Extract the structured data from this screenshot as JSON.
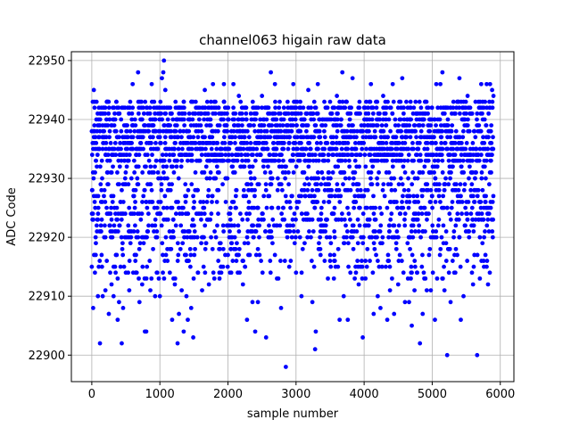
{
  "chart_data": {
    "type": "scatter",
    "title": "channel063 higain raw data",
    "xlabel": "sample number",
    "ylabel": "ADC Code",
    "xlim": [
      -300,
      6200
    ],
    "ylim": [
      22895.5,
      22951.5
    ],
    "xticks": [
      0,
      1000,
      2000,
      3000,
      4000,
      5000,
      6000
    ],
    "yticks": [
      22900,
      22910,
      22920,
      22930,
      22940,
      22950
    ],
    "grid": true,
    "marker_color": "#0000ff",
    "series": [
      {
        "points": [
          [
            0,
            22915
          ],
          [
            20,
            22908
          ],
          [
            30,
            22945
          ],
          [
            40,
            22943
          ],
          [
            60,
            22933
          ],
          [
            90,
            22910
          ],
          [
            120,
            22902
          ],
          [
            150,
            22915
          ],
          [
            160,
            22910
          ],
          [
            200,
            22911
          ],
          [
            220,
            22916
          ],
          [
            250,
            22907
          ],
          [
            290,
            22912
          ],
          [
            320,
            22910
          ],
          [
            380,
            22906
          ],
          [
            400,
            22909
          ],
          [
            440,
            22902
          ],
          [
            460,
            22908
          ],
          [
            500,
            22914
          ],
          [
            550,
            22911
          ],
          [
            600,
            22946
          ],
          [
            650,
            22917
          ],
          [
            680,
            22948
          ],
          [
            700,
            22909
          ],
          [
            740,
            22912
          ],
          [
            780,
            22904
          ],
          [
            800,
            22904
          ],
          [
            860,
            22911
          ],
          [
            880,
            22946
          ],
          [
            930,
            22910
          ],
          [
            1000,
            22910
          ],
          [
            1030,
            22947
          ],
          [
            1050,
            22948
          ],
          [
            1060,
            22950
          ],
          [
            1080,
            22945
          ],
          [
            1180,
            22906
          ],
          [
            1220,
            22912
          ],
          [
            1260,
            22902
          ],
          [
            1280,
            22907
          ],
          [
            1320,
            22911
          ],
          [
            1350,
            22904
          ],
          [
            1390,
            22910
          ],
          [
            1410,
            22906
          ],
          [
            1460,
            22908
          ],
          [
            1490,
            22903
          ],
          [
            1560,
            22914
          ],
          [
            1620,
            22911
          ],
          [
            1660,
            22945
          ],
          [
            1720,
            22912
          ],
          [
            1780,
            22946
          ],
          [
            1800,
            22913
          ],
          [
            1900,
            22915
          ],
          [
            1940,
            22946
          ],
          [
            2000,
            22917
          ],
          [
            2050,
            22919
          ],
          [
            2080,
            22946
          ],
          [
            2160,
            22944
          ],
          [
            2220,
            22912
          ],
          [
            2280,
            22906
          ],
          [
            2320,
            22917
          ],
          [
            2360,
            22909
          ],
          [
            2400,
            22904
          ],
          [
            2440,
            22909
          ],
          [
            2500,
            22944
          ],
          [
            2560,
            22903
          ],
          [
            2620,
            22916
          ],
          [
            2630,
            22948
          ],
          [
            2690,
            22946
          ],
          [
            2740,
            22913
          ],
          [
            2780,
            22908
          ],
          [
            2850,
            22898
          ],
          [
            2900,
            22915
          ],
          [
            2960,
            22946
          ],
          [
            3000,
            22914
          ],
          [
            3080,
            22910
          ],
          [
            3180,
            22945
          ],
          [
            3240,
            22909
          ],
          [
            3280,
            22901
          ],
          [
            3290,
            22904
          ],
          [
            3320,
            22946
          ],
          [
            3420,
            22916
          ],
          [
            3500,
            22943
          ],
          [
            3560,
            22916
          ],
          [
            3600,
            22944
          ],
          [
            3640,
            22906
          ],
          [
            3680,
            22948
          ],
          [
            3700,
            22910
          ],
          [
            3760,
            22906
          ],
          [
            3830,
            22947
          ],
          [
            3880,
            22914
          ],
          [
            3920,
            22912
          ],
          [
            3980,
            22903
          ],
          [
            4020,
            22913
          ],
          [
            4100,
            22946
          ],
          [
            4140,
            22907
          ],
          [
            4200,
            22910
          ],
          [
            4240,
            22908
          ],
          [
            4280,
            22944
          ],
          [
            4340,
            22906
          ],
          [
            4380,
            22911
          ],
          [
            4420,
            22946
          ],
          [
            4440,
            22907
          ],
          [
            4500,
            22912
          ],
          [
            4560,
            22947
          ],
          [
            4600,
            22909
          ],
          [
            4660,
            22909
          ],
          [
            4700,
            22905
          ],
          [
            4740,
            22911
          ],
          [
            4780,
            22914
          ],
          [
            4820,
            22902
          ],
          [
            4860,
            22907
          ],
          [
            4920,
            22911
          ],
          [
            4980,
            22911
          ],
          [
            5040,
            22906
          ],
          [
            5060,
            22946
          ],
          [
            5120,
            22946
          ],
          [
            5150,
            22948
          ],
          [
            5180,
            22911
          ],
          [
            5220,
            22900
          ],
          [
            5270,
            22909
          ],
          [
            5300,
            22916
          ],
          [
            5340,
            22914
          ],
          [
            5400,
            22947
          ],
          [
            5420,
            22906
          ],
          [
            5460,
            22910
          ],
          [
            5520,
            22944
          ],
          [
            5600,
            22912
          ],
          [
            5660,
            22900
          ],
          [
            5700,
            22913
          ],
          [
            5720,
            22946
          ],
          [
            5760,
            22915
          ],
          [
            5800,
            22946
          ],
          [
            5820,
            22912
          ],
          [
            5850,
            22946
          ],
          [
            5880,
            22945
          ],
          [
            5900,
            22944
          ]
        ]
      }
    ]
  }
}
